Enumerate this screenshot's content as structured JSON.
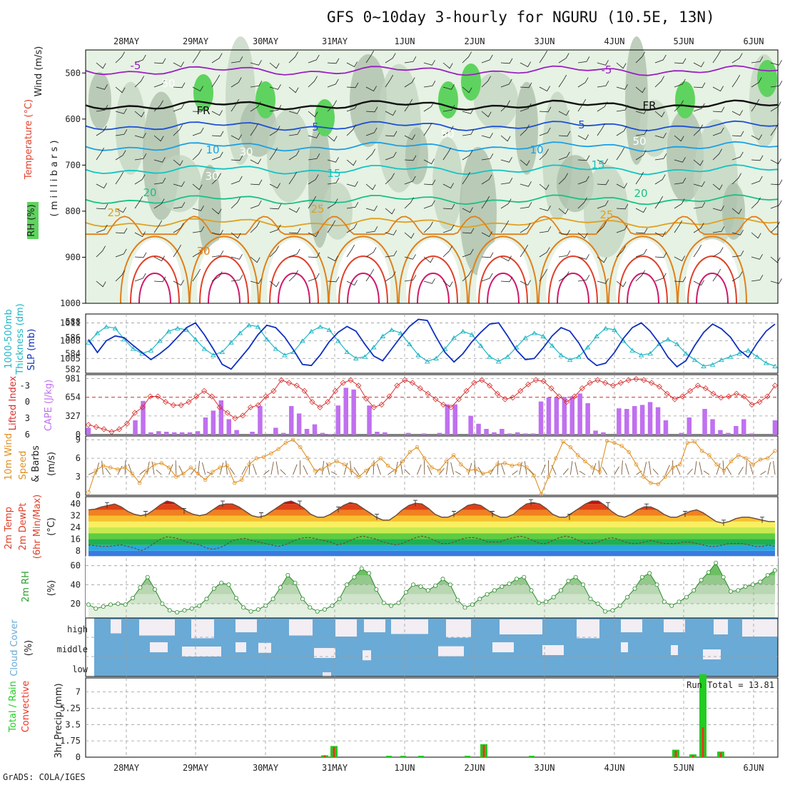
{
  "title": "GFS 0~10day 3-hourly for NGURU (10.5E, 13N)",
  "credit": "GrADS: COLA/IGES",
  "dates": [
    "28MAY",
    "29MAY",
    "30MAY",
    "31MAY",
    "1JUN",
    "2JUN",
    "3JUN",
    "4JUN",
    "5JUN",
    "6JUN"
  ],
  "colors": {
    "rh_light": "#e6f2e3",
    "rh_mid": "#c2d4c0",
    "rh_dark": "#a9bda7",
    "rh_green": "#5fd35f",
    "t_m5": "#9b1fc3",
    "t_fr": "#111111",
    "t_5": "#1c4fd6",
    "t_10": "#1aa0e6",
    "t_15": "#12c4c4",
    "t_20": "#18c08a",
    "t_25": "#e0a020",
    "t_30": "#e0801c",
    "t_35": "#e0402a",
    "t_40": "#d0186a",
    "slp": "#1030c0",
    "thick": "#20b6c4",
    "li": "#d83030",
    "cape": "#c070f0",
    "wind": "#e09020",
    "cloud": "#6aaad6",
    "precip_total": "#22cc22",
    "precip_conv": "#ee3322"
  },
  "panels": {
    "upper": {
      "ylabels": [
        "Wind (m/s)",
        "Temperature (°C)",
        "RH (%)",
        "( m i l l i b a r s )"
      ],
      "pressure_ticks": [
        "500",
        "600",
        "700",
        "800",
        "900",
        "1000"
      ],
      "contour_labels": [
        "-5",
        "-5",
        "FR",
        "FR",
        "5",
        "5",
        "10",
        "10",
        "15",
        "15",
        "20",
        "20",
        "25",
        "25",
        "25",
        "30",
        "50",
        "50",
        "30",
        "30",
        "50"
      ]
    },
    "pressure": {
      "ylabels": [
        "1000-500mb",
        "Thickness (dm)",
        "SLP (mb)"
      ],
      "left_ticks": [
        "588",
        "586",
        "584",
        "582"
      ],
      "right_ticks": [
        "1011",
        "1008",
        "1005"
      ]
    },
    "stability": {
      "ylabels": [
        "Lifted Index",
        "CAPE (J/kg)"
      ],
      "left_ticks": [
        "-3",
        "0",
        "3",
        "6"
      ],
      "right_ticks": [
        "981",
        "654",
        "327",
        "0"
      ]
    },
    "wind10": {
      "ylabels": [
        "10m Wind",
        "Speed",
        "& Barbs",
        "(m/s)"
      ],
      "ticks": [
        "9",
        "6",
        "3",
        "0"
      ]
    },
    "temp2m": {
      "ylabels": [
        "2m Temp",
        "2m DewPt",
        "(6hr Min/Max)",
        "(°C)"
      ],
      "ticks": [
        "40",
        "32",
        "24",
        "16",
        "8"
      ]
    },
    "rh2m": {
      "ylabels": [
        "2m RH",
        "(%)"
      ],
      "ticks": [
        "60",
        "40",
        "20"
      ]
    },
    "cloud": {
      "ylabels": [
        "Cloud Cover",
        "(%)"
      ],
      "levels": [
        "high",
        "middle",
        "low"
      ]
    },
    "precip": {
      "ylabels": [
        "3hr Precip (mm)",
        "Total / Rain",
        "Convective"
      ],
      "ticks": [
        "7",
        "5.25",
        "3.5",
        "1.75",
        "0"
      ],
      "run_total": "Run Total = 13.81"
    }
  },
  "chart_data": [
    {
      "type": "heatmap",
      "name": "upper-air cross-section",
      "x": [
        "28MAY",
        "29MAY",
        "30MAY",
        "31MAY",
        "1JUN",
        "2JUN",
        "3JUN",
        "4JUN",
        "5JUN",
        "6JUN"
      ],
      "y_axis": "pressure (mb)",
      "ylim": [
        1000,
        450
      ],
      "temperature_contours_C": [
        -5,
        0,
        5,
        10,
        15,
        20,
        25,
        30,
        35,
        40
      ],
      "approx_isotherm_levels_mb": {
        "-5": 495,
        "0": 570,
        "5": 615,
        "10": 660,
        "15": 710,
        "20": 775,
        "25": 825
      }
    },
    {
      "type": "line",
      "name": "SLP and thickness",
      "series": [
        {
          "name": "SLP (mb)",
          "values": [
            1008.2,
            1006.0,
            1008.0,
            1008.8,
            1008.5,
            1007.2,
            1006.0,
            1004.8,
            1005.8,
            1007.0,
            1008.6,
            1010.2,
            1011.0,
            1009.0,
            1006.6,
            1004.0,
            1003.2,
            1005.0,
            1006.8,
            1009.0,
            1010.6,
            1010.2,
            1008.6,
            1006.4,
            1004.0,
            1003.8,
            1005.6,
            1007.8,
            1009.4,
            1010.4,
            1009.6,
            1007.4,
            1005.4,
            1004.6,
            1006.6,
            1008.6,
            1010.4,
            1011.6,
            1011.4,
            1008.6,
            1006.0,
            1004.4,
            1005.8,
            1007.8,
            1009.4,
            1010.8,
            1011.0,
            1008.8,
            1006.4,
            1004.8,
            1005.0,
            1006.8,
            1008.8,
            1010.2,
            1009.6,
            1007.6,
            1005.0,
            1003.8,
            1004.2,
            1006.0,
            1008.4,
            1010.2,
            1011.0,
            1009.6,
            1007.6,
            1005.2,
            1003.6,
            1004.6,
            1007.2,
            1009.4,
            1010.8,
            1010.0,
            1008.6,
            1006.4,
            1005.2,
            1007.6,
            1009.6,
            1010.8
          ]
        },
        {
          "name": "Thickness (dm)",
          "values": [
            585.4,
            586.6,
            587.4,
            587.2,
            585.8,
            584.6,
            584.0,
            584.4,
            585.6,
            586.8,
            587.2,
            587.0,
            585.8,
            584.6,
            583.8,
            584.2,
            585.4,
            586.6,
            587.6,
            587.4,
            585.8,
            584.6,
            583.8,
            584.2,
            585.6,
            586.8,
            587.4,
            587.0,
            585.6,
            584.2,
            583.4,
            583.6,
            584.8,
            586.2,
            587.0,
            586.6,
            585.2,
            583.8,
            583.0,
            583.4,
            584.6,
            586.0,
            586.8,
            586.4,
            585.0,
            583.6,
            583.0,
            583.6,
            584.8,
            586.0,
            586.6,
            586.2,
            585.0,
            583.8,
            583.2,
            583.6,
            584.8,
            586.2,
            587.2,
            587.0,
            585.6,
            584.4,
            583.8,
            584.0,
            585.2,
            585.8,
            585.2,
            584.0,
            583.2,
            582.4,
            582.6,
            583.2,
            583.6,
            584.0,
            584.4,
            583.6,
            582.8,
            582.4
          ]
        }
      ]
    },
    {
      "type": "bar",
      "name": "Lifted Index and CAPE",
      "series": [
        {
          "name": "CAPE (J/kg)",
          "values": [
            120,
            0,
            0,
            0,
            0,
            0,
            250,
            590,
            40,
            60,
            50,
            40,
            40,
            40,
            60,
            300,
            420,
            600,
            270,
            80,
            0,
            50,
            500,
            0,
            120,
            30,
            500,
            370,
            100,
            180,
            30,
            10,
            510,
            820,
            790,
            0,
            510,
            50,
            40,
            0,
            0,
            30,
            0,
            20,
            0,
            30,
            530,
            530,
            0,
            330,
            190,
            100,
            40,
            100,
            20,
            40,
            20,
            20,
            580,
            650,
            650,
            660,
            670,
            720,
            550,
            70,
            40,
            0,
            460,
            450,
            500,
            520,
            570,
            480,
            250,
            0,
            30,
            300,
            0,
            450,
            270,
            80,
            30,
            150,
            270,
            20,
            0,
            0,
            250
          ]
        },
        {
          "name": "Lifted Index",
          "values": [
            4.2,
            4.6,
            5.0,
            5.5,
            5.0,
            4.0,
            2.0,
            1.0,
            -1.0,
            -1.0,
            0.0,
            0.6,
            0.6,
            0.0,
            -1.0,
            -2.0,
            -1.0,
            1.0,
            2.0,
            3.0,
            2.5,
            1.0,
            0.6,
            -1.0,
            -2.0,
            -4.0,
            -3.5,
            -3.0,
            -2.0,
            0.0,
            1.0,
            0.0,
            -2.0,
            -3.5,
            -4.0,
            -3.0,
            -0.6,
            1.0,
            0.5,
            -1.0,
            -3.0,
            -4.0,
            -3.5,
            -2.5,
            -1.5,
            -0.5,
            0.5,
            1.0,
            -0.5,
            -2.0,
            -3.5,
            -4.0,
            -3.0,
            -1.5,
            -0.5,
            -0.8,
            -2.0,
            -3.2,
            -4.0,
            -3.8,
            -2.5,
            -1.0,
            0.0,
            -1.0,
            -2.5,
            -3.5,
            -4.0,
            -3.5,
            -3.0,
            -3.5,
            -4.0,
            -4.2,
            -4.0,
            -3.5,
            -2.8,
            -1.5,
            -0.5,
            -1.0,
            -2.0,
            -3.0,
            -2.5,
            -1.5,
            -0.8,
            -1.0,
            -1.5,
            -1.0,
            0.5,
            0.0,
            -1.0,
            -3.0
          ]
        }
      ],
      "ylim_cape": [
        0,
        1050
      ]
    },
    {
      "type": "line",
      "name": "10m wind speed",
      "series": [
        {
          "name": "Speed (m/s)",
          "values": [
            0.5,
            4,
            4.8,
            4.5,
            4.2,
            4.5,
            3.5,
            2,
            4,
            5,
            5.2,
            4.5,
            3,
            3.5,
            4.5,
            3.5,
            2.5,
            3.8,
            4.5,
            4.8,
            2,
            2.5,
            5,
            6,
            6.2,
            6.8,
            7.5,
            8.5,
            9,
            7.8,
            6,
            4,
            4.2,
            5,
            5.5,
            5,
            4,
            3,
            4,
            5,
            6,
            4.8,
            4,
            5.5,
            7,
            7.8,
            6,
            4.5,
            4,
            5.5,
            6.5,
            5,
            4,
            4.2,
            3.5,
            3.8,
            5,
            5.2,
            4.8,
            5,
            4.5,
            3.2,
            0.2,
            3,
            6,
            8.7,
            7.8,
            6.5,
            5.5,
            4.5,
            3.8,
            8.8,
            8.5,
            8,
            7,
            5,
            3,
            2,
            1.8,
            3,
            4.5,
            5,
            8.5,
            8.7,
            7.2,
            6.5,
            5,
            4,
            5.5,
            6.5,
            6,
            5,
            5.8,
            6,
            7.2
          ]
        }
      ],
      "ylim": [
        0,
        9.5
      ]
    },
    {
      "type": "area",
      "name": "2m temperature and dewpoint",
      "series": [
        {
          "name": "2m Temp (°C)",
          "values": [
            36,
            36.5,
            38,
            39,
            40,
            38,
            35,
            33,
            32,
            33,
            36,
            39.5,
            42,
            41,
            38,
            35,
            33,
            32,
            33,
            36,
            39,
            40,
            40,
            38,
            35,
            32,
            31,
            32,
            35,
            38,
            41,
            42,
            40,
            37,
            33,
            31,
            31,
            33,
            36,
            39,
            41,
            40,
            37,
            34,
            31,
            29,
            29,
            32,
            36,
            39,
            40.5,
            40,
            37,
            33,
            31,
            31,
            33,
            36,
            39,
            40,
            39,
            36,
            33,
            31,
            31,
            33,
            37,
            40,
            41,
            40,
            37,
            33,
            31,
            31,
            34,
            37,
            40,
            42,
            42,
            39,
            35,
            32,
            31,
            33,
            36,
            38,
            38,
            36,
            33,
            31,
            31,
            33,
            35,
            36,
            34,
            31,
            28,
            27,
            28,
            30,
            31,
            31,
            30,
            29,
            28,
            28
          ]
        },
        {
          "name": "2m DewPt (°C)",
          "values": [
            12,
            11.5,
            11,
            11,
            11.5,
            12,
            11,
            10,
            8,
            10,
            13,
            16,
            17.5,
            17,
            16,
            14,
            13,
            12,
            10,
            9,
            10,
            12,
            15,
            16,
            16.5,
            15,
            14,
            13,
            12,
            11,
            12,
            14,
            16,
            17,
            17,
            16,
            15,
            14,
            12,
            13,
            15,
            17,
            18,
            17,
            16,
            14,
            13,
            12,
            13,
            15,
            17,
            18,
            17,
            15,
            13,
            13,
            14,
            16,
            17,
            17,
            16,
            14,
            14,
            14,
            16,
            17,
            18,
            17,
            15,
            13,
            13,
            15,
            17,
            18,
            17,
            15,
            13,
            13,
            14,
            16,
            17,
            16,
            14,
            13,
            13,
            14,
            15,
            14,
            13,
            13,
            13,
            14,
            14,
            13,
            12,
            11,
            11,
            12,
            13,
            13,
            13,
            12,
            11,
            11,
            12,
            11
          ]
        }
      ],
      "ylim": [
        4,
        45
      ]
    },
    {
      "type": "area",
      "name": "2m RH",
      "series": [
        {
          "name": "2m RH (%)",
          "values": [
            19,
            15,
            17,
            19,
            20,
            19,
            26,
            37,
            48,
            35,
            20,
            13,
            11,
            13,
            15,
            18,
            25,
            36,
            42,
            40,
            26,
            16,
            12,
            14,
            18,
            25,
            37,
            50,
            42,
            25,
            16,
            12,
            14,
            18,
            25,
            40,
            48,
            57,
            52,
            35,
            21,
            18,
            21,
            32,
            40,
            38,
            34,
            39,
            46,
            40,
            24,
            16,
            19,
            25,
            30,
            34,
            38,
            41,
            46,
            48,
            34,
            21,
            22,
            27,
            34,
            44,
            48,
            40,
            25,
            20,
            12,
            13,
            18,
            27,
            36,
            48,
            52,
            40,
            22,
            18,
            22,
            27,
            34,
            45,
            53,
            63,
            48,
            33,
            34,
            38,
            40,
            43,
            50,
            55
          ]
        }
      ],
      "ylim": [
        5,
        68
      ]
    },
    {
      "type": "bar",
      "name": "Cloud cover",
      "categories": [
        "high",
        "middle",
        "low"
      ],
      "notes": "high layer mostly high coverage with intermittent gaps; middle layer mostly near-total; low layer near-total"
    },
    {
      "type": "bar",
      "name": "3hr precipitation",
      "x": [
        "31MAY",
        "31MAY",
        "2JUN",
        "5JUN",
        "5JUN",
        "5JUN",
        "5JUN"
      ],
      "series": [
        {
          "name": "Total (mm)",
          "values": [
            0.2,
            1.2,
            1.4,
            0.8,
            0.3,
            8.9,
            0.6
          ]
        },
        {
          "name": "Convective (mm)",
          "values": [
            0.2,
            1.1,
            1.3,
            0.7,
            0.2,
            3.2,
            0.5
          ]
        }
      ],
      "run_total": 13.81,
      "ylim": [
        0,
        8.5
      ]
    }
  ]
}
